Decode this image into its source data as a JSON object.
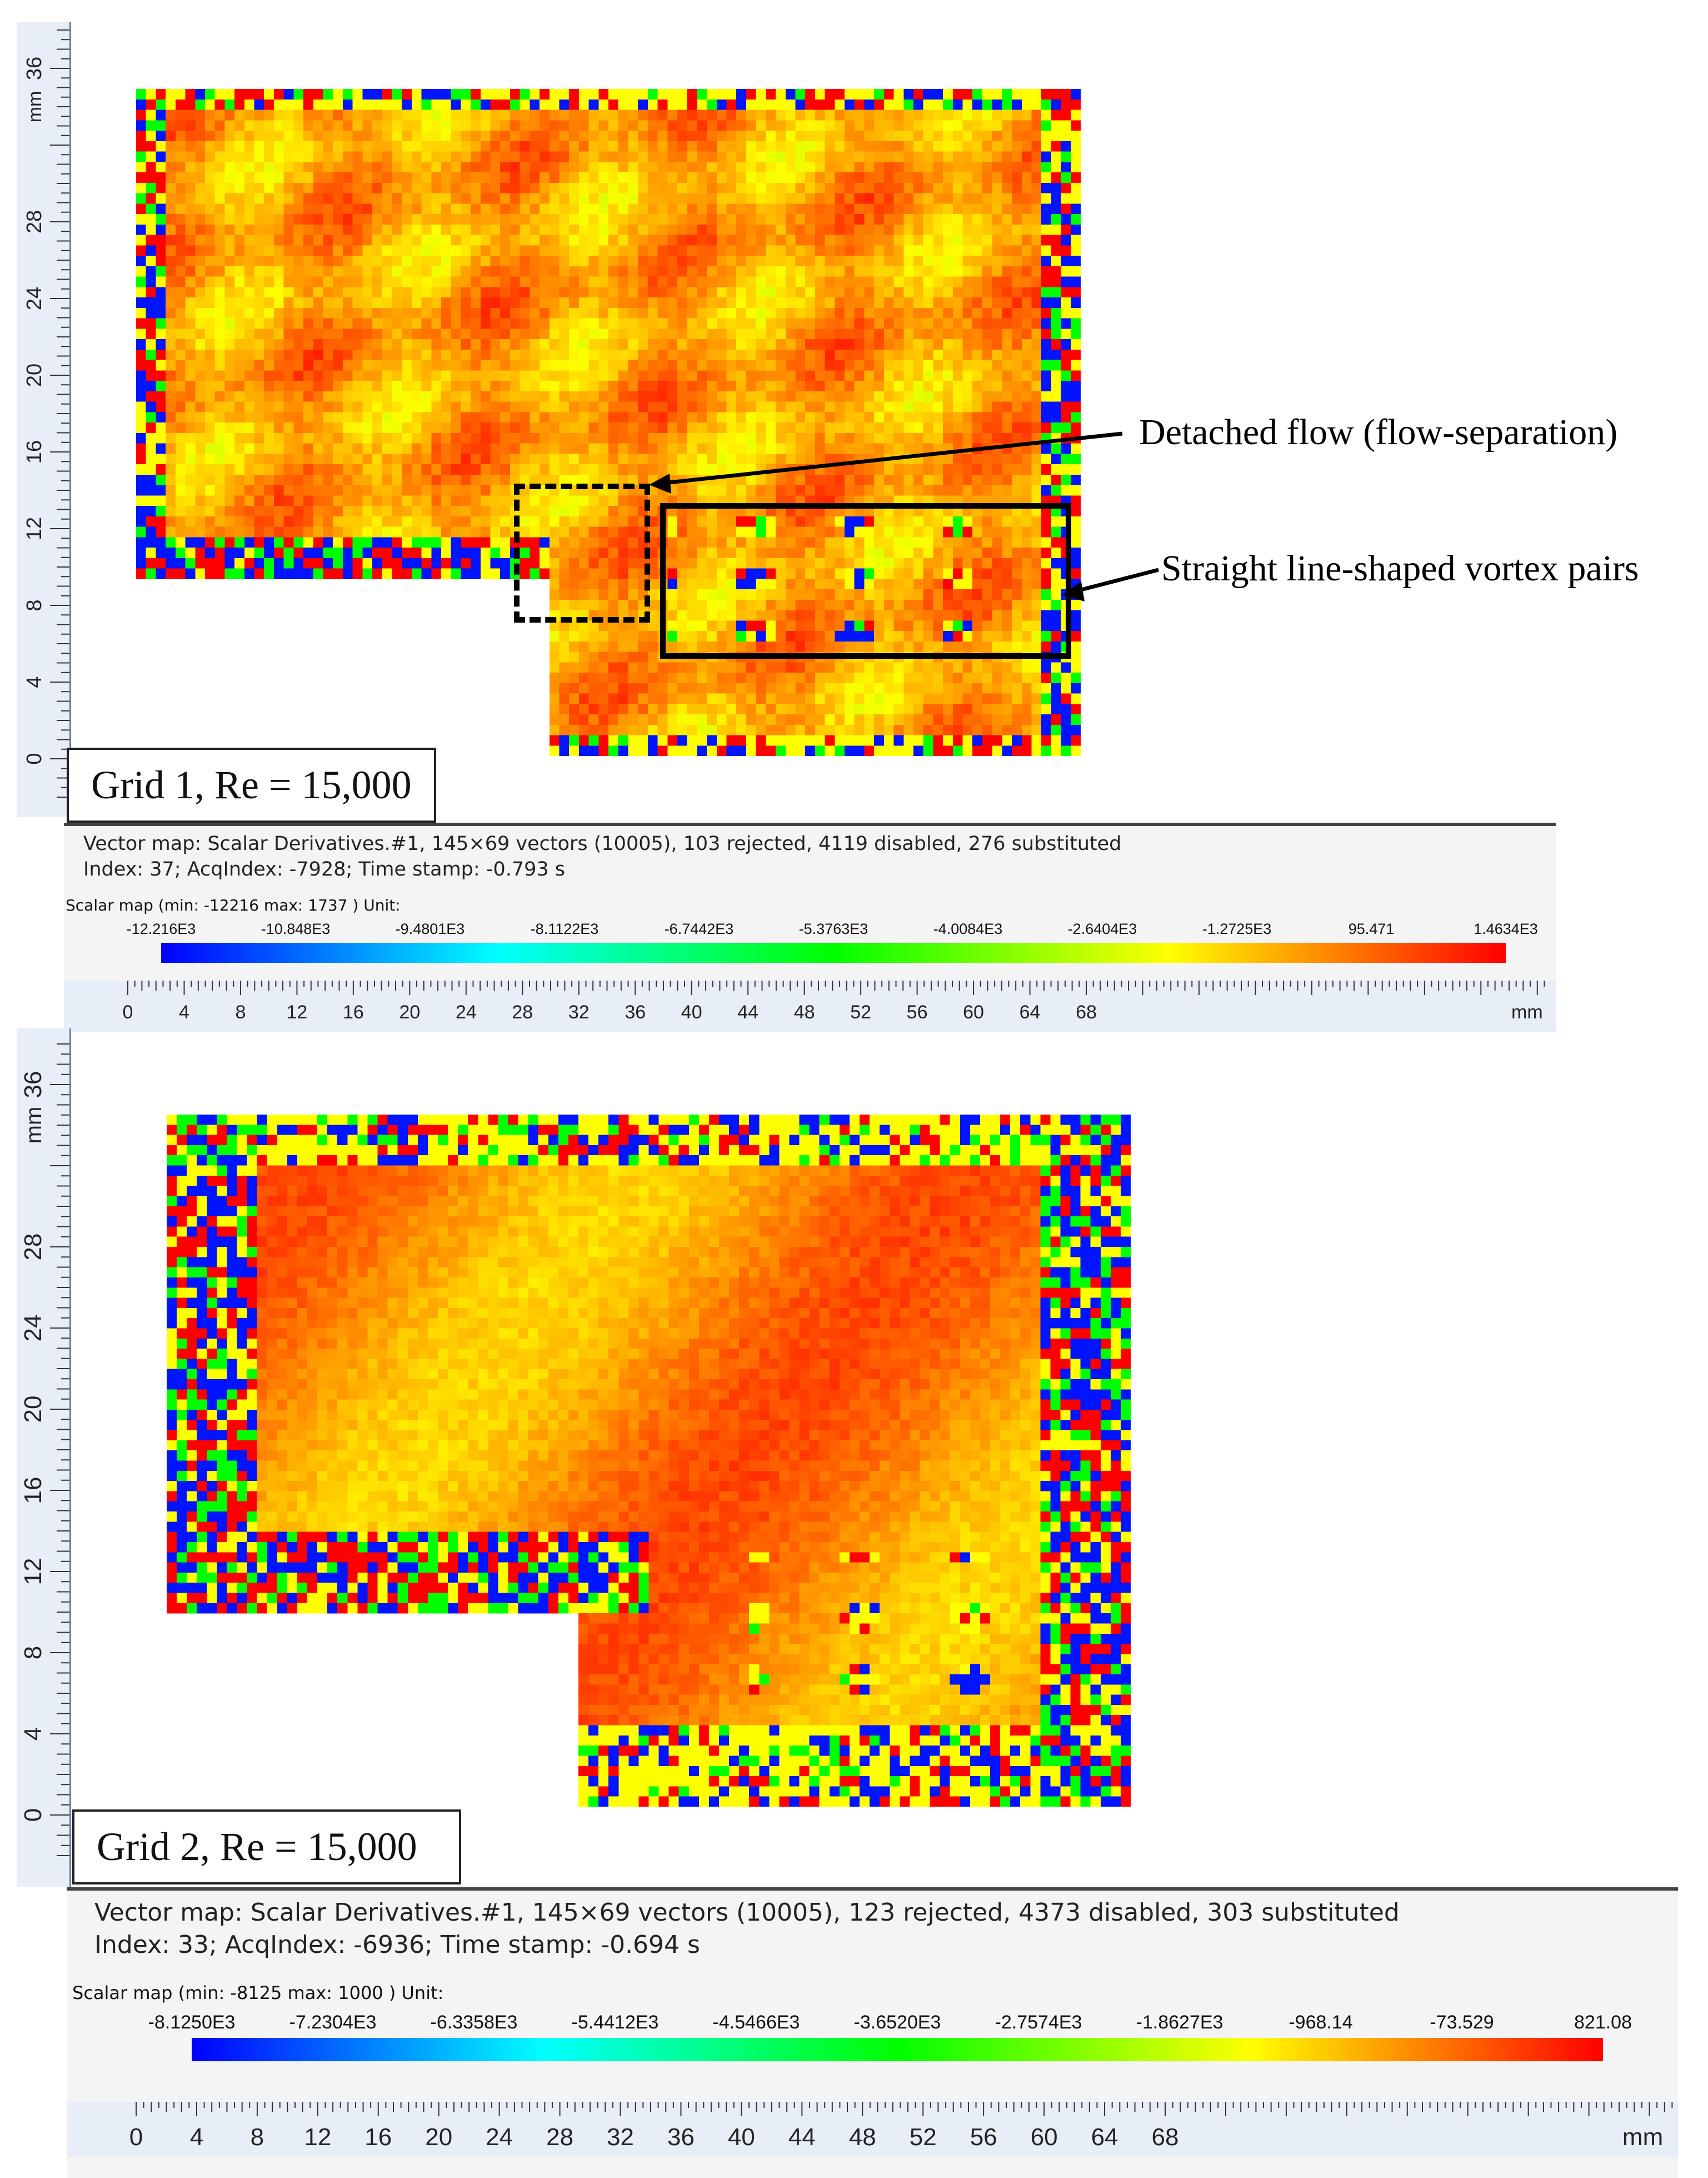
{
  "annotations": {
    "detached": "Detached flow (flow-separation)",
    "vortex": "Straight line-shaped vortex pairs"
  },
  "panels": [
    {
      "grid_label": "Grid 1, Re = 15,000",
      "info_line1": "Vector map: Scalar Derivatives.#1, 145×69 vectors (10005), 103 rejected, 4119 disabled, 276 substituted",
      "info_line2": "Index: 37; AcqIndex: -7928; Time stamp: -0.793 s",
      "scalar_caption": "Scalar map (min: -12216 max: 1737 ) Unit:",
      "colorbar_labels": [
        "-12.216E3",
        "-10.848E3",
        "-9.4801E3",
        "-8.1122E3",
        "-6.7442E3",
        "-5.3763E3",
        "-4.0084E3",
        "-2.6404E3",
        "-1.2725E3",
        "95.471",
        "1.4634E3"
      ],
      "y_unit": "mm",
      "x_unit": "mm",
      "y_ticks": [
        "0",
        "4",
        "8",
        "12",
        "16",
        "20",
        "24",
        "28",
        "36"
      ],
      "x_ticks": [
        "0",
        "4",
        "8",
        "12",
        "16",
        "20",
        "24",
        "28",
        "32",
        "36",
        "40",
        "44",
        "48",
        "52",
        "56",
        "60",
        "64",
        "68"
      ]
    },
    {
      "grid_label": "Grid 2, Re = 15,000",
      "info_line1": "Vector map: Scalar Derivatives.#1, 145×69 vectors (10005), 123 rejected, 4373 disabled, 303 substituted",
      "info_line2": "Index: 33; AcqIndex: -6936; Time stamp: -0.694 s",
      "scalar_caption": "Scalar map (min: -8125 max: 1000 ) Unit:",
      "colorbar_labels": [
        "-8.1250E3",
        "-7.2304E3",
        "-6.3358E3",
        "-5.4412E3",
        "-4.5466E3",
        "-3.6520E3",
        "-2.7574E3",
        "-1.8627E3",
        "-968.14",
        "-73.529",
        "821.08"
      ],
      "y_unit": "mm",
      "x_unit": "mm",
      "y_ticks": [
        "0",
        "4",
        "8",
        "12",
        "16",
        "20",
        "24",
        "28",
        "36"
      ],
      "x_ticks": [
        "0",
        "4",
        "8",
        "12",
        "16",
        "20",
        "24",
        "28",
        "32",
        "36",
        "40",
        "44",
        "48",
        "52",
        "56",
        "60",
        "64",
        "68"
      ]
    }
  ],
  "chart_data": [
    {
      "type": "heatmap",
      "colormap": [
        "#0000ff",
        "#00ffff",
        "#00ff00",
        "#ffff00",
        "#ff0000"
      ],
      "value_range": [
        -12216,
        1737
      ],
      "x_range_mm": [
        0,
        70
      ],
      "y_range_mm": [
        0,
        38
      ],
      "annotation_boxes": [
        "Detached flow (flow-separation)",
        "Straight line-shaped vortex pairs"
      ]
    },
    {
      "type": "heatmap",
      "colormap": [
        "#0000ff",
        "#00ffff",
        "#00ff00",
        "#ffff00",
        "#ff0000"
      ],
      "value_range": [
        -8125,
        1000
      ],
      "x_range_mm": [
        0,
        70
      ],
      "y_range_mm": [
        0,
        38
      ]
    }
  ]
}
